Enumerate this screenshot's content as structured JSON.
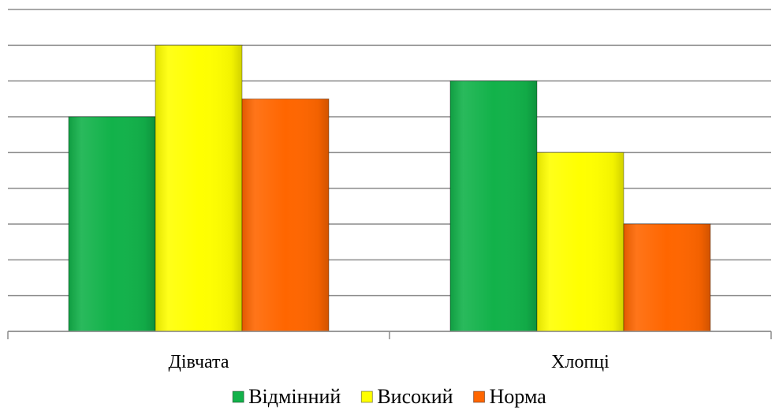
{
  "chart_data": {
    "type": "bar",
    "categories": [
      "Дівчата",
      "Хлопці"
    ],
    "series": [
      {
        "name": "Відмінний",
        "values": [
          6,
          7
        ],
        "color": "#12b24a"
      },
      {
        "name": "Високий",
        "values": [
          8,
          5
        ],
        "color": "#ffff00"
      },
      {
        "name": "Норма",
        "values": [
          6.5,
          3
        ],
        "color": "#ff6600"
      }
    ],
    "ylim": [
      0,
      9
    ],
    "ystep": 1,
    "grid": true,
    "legend": "bottom",
    "title": "",
    "xlabel": "",
    "ylabel": ""
  }
}
